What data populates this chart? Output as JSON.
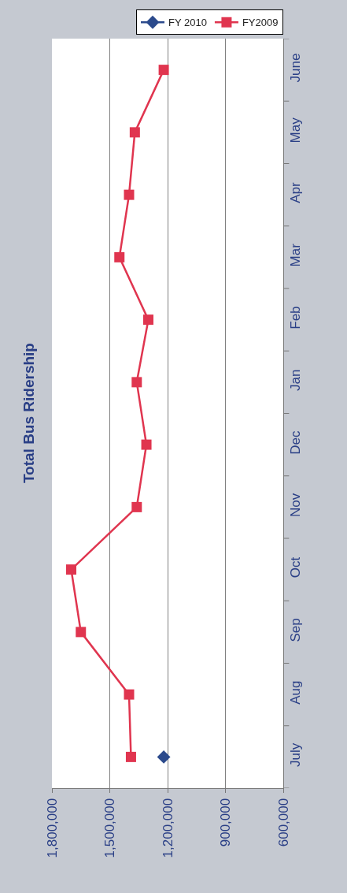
{
  "chart_data": {
    "type": "line",
    "title": "Total Bus Ridership",
    "orientation": "horizontal",
    "categories": [
      "June",
      "May",
      "Apr",
      "Mar",
      "Feb",
      "Jan",
      "Dec",
      "Nov",
      "Oct",
      "Sep",
      "Aug",
      "July"
    ],
    "series": [
      {
        "name": "FY 2010",
        "color": "#2b4a8c",
        "marker": "diamond",
        "values": [
          null,
          null,
          null,
          null,
          null,
          null,
          null,
          null,
          null,
          null,
          null,
          1220000
        ]
      },
      {
        "name": "FY2009",
        "color": "#e0354f",
        "marker": "square",
        "values": [
          1220000,
          1370000,
          1400000,
          1450000,
          1300000,
          1360000,
          1310000,
          1360000,
          1700000,
          1650000,
          1400000,
          1390000
        ]
      }
    ],
    "xlim": [
      1800000,
      600000
    ],
    "xticks": [
      {
        "value": 1800000,
        "label": "1,800,000"
      },
      {
        "value": 1500000,
        "label": "1,500,000"
      },
      {
        "value": 1200000,
        "label": "1,200,000"
      },
      {
        "value": 900000,
        "label": "900,000"
      },
      {
        "value": 600000,
        "label": "600,000"
      }
    ],
    "grid": "x",
    "legend": "top right",
    "line_style": "solid"
  }
}
